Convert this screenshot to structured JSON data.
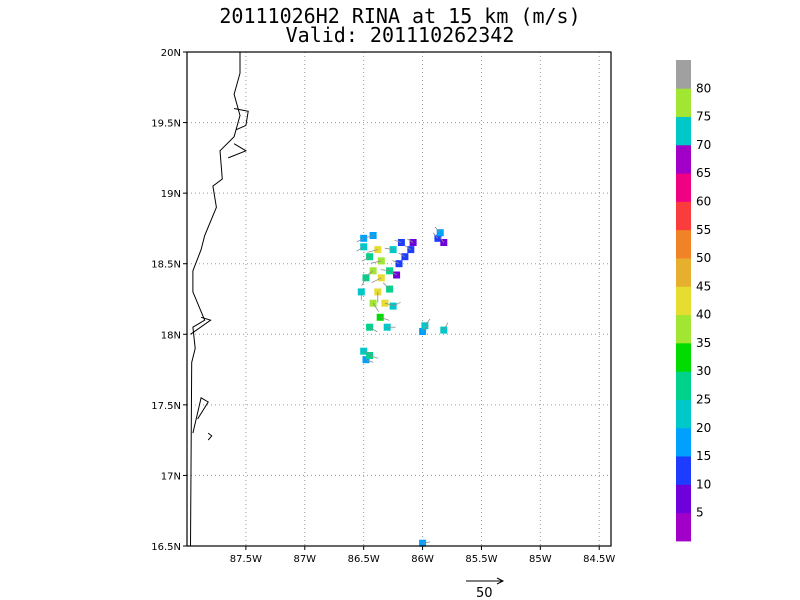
{
  "title": {
    "line1": "20111026H2 RINA at 15 km (m/s)",
    "line2": "Valid: 201110262342"
  },
  "axes": {
    "lon_min": -88.0,
    "lon_max": -84.4,
    "lat_min": 16.5,
    "lat_max": 20.0,
    "x_ticks": [
      {
        "value": -87.5,
        "label": "87.5W"
      },
      {
        "value": -87.0,
        "label": "87W"
      },
      {
        "value": -86.5,
        "label": "86.5W"
      },
      {
        "value": -86.0,
        "label": "86W"
      },
      {
        "value": -85.5,
        "label": "85.5W"
      },
      {
        "value": -85.0,
        "label": "85W"
      },
      {
        "value": -84.5,
        "label": "84.5W"
      }
    ],
    "y_ticks": [
      {
        "value": 16.5,
        "label": "16.5N"
      },
      {
        "value": 17.0,
        "label": "17N"
      },
      {
        "value": 17.5,
        "label": "17.5N"
      },
      {
        "value": 18.0,
        "label": "18N"
      },
      {
        "value": 18.5,
        "label": "18.5N"
      },
      {
        "value": 19.0,
        "label": "19N"
      },
      {
        "value": 19.5,
        "label": "19.5N"
      },
      {
        "value": 20.0,
        "label": "20N"
      }
    ],
    "grid": "dotted"
  },
  "colorbar": {
    "colors": [
      "#a000c8",
      "#6e00dc",
      "#1e3cff",
      "#00a0ff",
      "#00c8c8",
      "#00d28c",
      "#00dc00",
      "#a0e632",
      "#e6dc32",
      "#e6af2d",
      "#f08228",
      "#fa3c3c",
      "#f00082",
      "#a000c8",
      "#00c8c8",
      "#a0e632",
      "#a0a0a0"
    ],
    "labels": [
      "5",
      "10",
      "15",
      "20",
      "25",
      "30",
      "35",
      "40",
      "45",
      "50",
      "55",
      "60",
      "65",
      "70",
      "75",
      "80"
    ]
  },
  "coastline": {
    "color": "#000000",
    "paths": [
      [
        [
          -87.97,
          16.5
        ],
        [
          -87.96,
          17.8
        ],
        [
          -87.93,
          17.9
        ],
        [
          -87.95,
          18.05
        ],
        [
          -87.85,
          18.1
        ],
        [
          -87.9,
          18.2
        ],
        [
          -87.95,
          18.3
        ],
        [
          -87.95,
          18.45
        ],
        [
          -87.88,
          18.6
        ],
        [
          -87.85,
          18.7
        ],
        [
          -87.75,
          18.9
        ],
        [
          -87.78,
          19.05
        ],
        [
          -87.7,
          19.1
        ],
        [
          -87.72,
          19.3
        ],
        [
          -87.6,
          19.4
        ],
        [
          -87.55,
          19.55
        ],
        [
          -87.6,
          19.7
        ],
        [
          -87.55,
          19.85
        ],
        [
          -87.55,
          20.0
        ]
      ],
      [
        [
          -87.6,
          19.35
        ],
        [
          -87.5,
          19.3
        ],
        [
          -87.65,
          19.25
        ]
      ],
      [
        [
          -87.6,
          19.6
        ],
        [
          -87.48,
          19.58
        ],
        [
          -87.5,
          19.48
        ],
        [
          -87.58,
          19.45
        ]
      ],
      [
        [
          -87.97,
          18.0
        ],
        [
          -87.8,
          18.1
        ],
        [
          -87.88,
          18.12
        ]
      ],
      [
        [
          -87.91,
          17.4
        ],
        [
          -87.82,
          17.52
        ],
        [
          -87.88,
          17.55
        ],
        [
          -87.95,
          17.3
        ]
      ],
      [
        [
          -87.82,
          17.25
        ],
        [
          -87.79,
          17.28
        ],
        [
          -87.82,
          17.3
        ]
      ]
    ]
  },
  "wind_field": {
    "units": "m/s",
    "cells": [
      {
        "lon": -86.38,
        "lat": 18.6,
        "speed": 40
      },
      {
        "lon": -86.35,
        "lat": 18.52,
        "speed": 35
      },
      {
        "lon": -86.42,
        "lat": 18.45,
        "speed": 35
      },
      {
        "lon": -86.35,
        "lat": 18.4,
        "speed": 40
      },
      {
        "lon": -86.38,
        "lat": 18.3,
        "speed": 40
      },
      {
        "lon": -86.32,
        "lat": 18.22,
        "speed": 40
      },
      {
        "lon": -86.42,
        "lat": 18.22,
        "speed": 35
      },
      {
        "lon": -86.36,
        "lat": 18.12,
        "speed": 30
      },
      {
        "lon": -86.28,
        "lat": 18.32,
        "speed": 25
      },
      {
        "lon": -86.28,
        "lat": 18.45,
        "speed": 25
      },
      {
        "lon": -86.45,
        "lat": 18.55,
        "speed": 25
      },
      {
        "lon": -86.48,
        "lat": 18.4,
        "speed": 25
      },
      {
        "lon": -86.45,
        "lat": 18.05,
        "speed": 25
      },
      {
        "lon": -86.25,
        "lat": 18.6,
        "speed": 20
      },
      {
        "lon": -86.5,
        "lat": 18.62,
        "speed": 20
      },
      {
        "lon": -86.52,
        "lat": 18.3,
        "speed": 20
      },
      {
        "lon": -86.25,
        "lat": 18.2,
        "speed": 20
      },
      {
        "lon": -86.3,
        "lat": 18.05,
        "speed": 20
      },
      {
        "lon": -86.5,
        "lat": 18.68,
        "speed": 15
      },
      {
        "lon": -86.42,
        "lat": 18.7,
        "speed": 15
      },
      {
        "lon": -86.18,
        "lat": 18.65,
        "speed": 10
      },
      {
        "lon": -86.15,
        "lat": 18.55,
        "speed": 10
      },
      {
        "lon": -86.2,
        "lat": 18.5,
        "speed": 10
      },
      {
        "lon": -86.1,
        "lat": 18.6,
        "speed": 10
      },
      {
        "lon": -86.22,
        "lat": 18.42,
        "speed": 5
      },
      {
        "lon": -86.08,
        "lat": 18.65,
        "speed": 5
      },
      {
        "lon": -85.87,
        "lat": 18.68,
        "speed": 10
      },
      {
        "lon": -85.82,
        "lat": 18.65,
        "speed": 5
      },
      {
        "lon": -85.85,
        "lat": 18.72,
        "speed": 15
      },
      {
        "lon": -86.5,
        "lat": 17.88,
        "speed": 20
      },
      {
        "lon": -86.48,
        "lat": 17.82,
        "speed": 15
      },
      {
        "lon": -86.45,
        "lat": 17.85,
        "speed": 25
      },
      {
        "lon": -86.0,
        "lat": 18.02,
        "speed": 15
      },
      {
        "lon": -85.98,
        "lat": 18.06,
        "speed": 20
      },
      {
        "lon": -85.82,
        "lat": 18.03,
        "speed": 20
      },
      {
        "lon": -86.0,
        "lat": 16.52,
        "speed": 15
      }
    ]
  },
  "vector_key": {
    "label": "50"
  }
}
